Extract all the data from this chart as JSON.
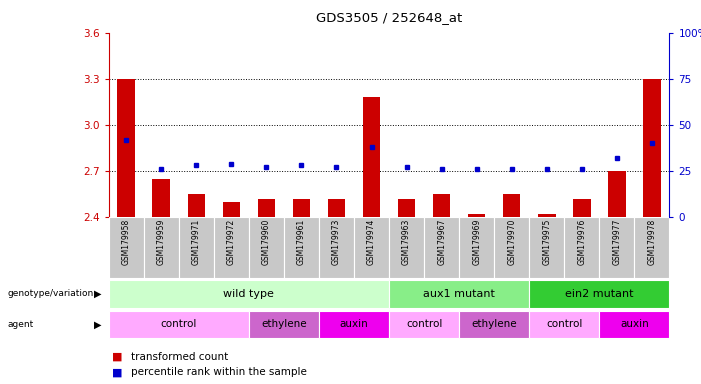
{
  "title": "GDS3505 / 252648_at",
  "samples": [
    "GSM179958",
    "GSM179959",
    "GSM179971",
    "GSM179972",
    "GSM179960",
    "GSM179961",
    "GSM179973",
    "GSM179974",
    "GSM179963",
    "GSM179967",
    "GSM179969",
    "GSM179970",
    "GSM179975",
    "GSM179976",
    "GSM179977",
    "GSM179978"
  ],
  "transformed_count": [
    3.3,
    2.65,
    2.55,
    2.5,
    2.52,
    2.52,
    2.52,
    3.18,
    2.52,
    2.55,
    2.42,
    2.55,
    2.42,
    2.52,
    2.7,
    3.3
  ],
  "percentile_rank": [
    42,
    26,
    28,
    29,
    27,
    28,
    27,
    38,
    27,
    26,
    26,
    26,
    26,
    26,
    32,
    40
  ],
  "ylim_left": [
    2.4,
    3.6
  ],
  "ylim_right": [
    0,
    100
  ],
  "yticks_left": [
    2.4,
    2.7,
    3.0,
    3.3,
    3.6
  ],
  "yticks_right": [
    0,
    25,
    50,
    75,
    100
  ],
  "hlines": [
    2.7,
    3.0,
    3.3
  ],
  "bar_color": "#cc0000",
  "dot_color": "#0000cc",
  "bar_width": 0.5,
  "genotype_groups": [
    {
      "label": "wild type",
      "start": 0,
      "end": 7,
      "color": "#ccffcc"
    },
    {
      "label": "aux1 mutant",
      "start": 8,
      "end": 11,
      "color": "#88ee88"
    },
    {
      "label": "ein2 mutant",
      "start": 12,
      "end": 15,
      "color": "#33cc33"
    }
  ],
  "agent_colors": {
    "control": "#ffaaff",
    "ethylene": "#cc66cc",
    "auxin": "#ee00ee"
  },
  "agent_groups": [
    {
      "label": "control",
      "start": 0,
      "end": 3
    },
    {
      "label": "ethylene",
      "start": 4,
      "end": 5
    },
    {
      "label": "auxin",
      "start": 6,
      "end": 7
    },
    {
      "label": "control",
      "start": 8,
      "end": 9
    },
    {
      "label": "ethylene",
      "start": 10,
      "end": 11
    },
    {
      "label": "control",
      "start": 12,
      "end": 13
    },
    {
      "label": "auxin",
      "start": 14,
      "end": 15
    }
  ],
  "legend_items": [
    {
      "label": "transformed count",
      "color": "#cc0000"
    },
    {
      "label": "percentile rank within the sample",
      "color": "#0000cc"
    }
  ],
  "left_color": "#cc0000",
  "right_color": "#0000cc",
  "sample_bg": "#c8c8c8",
  "label_fontsize": 7,
  "tick_fontsize": 7.5
}
